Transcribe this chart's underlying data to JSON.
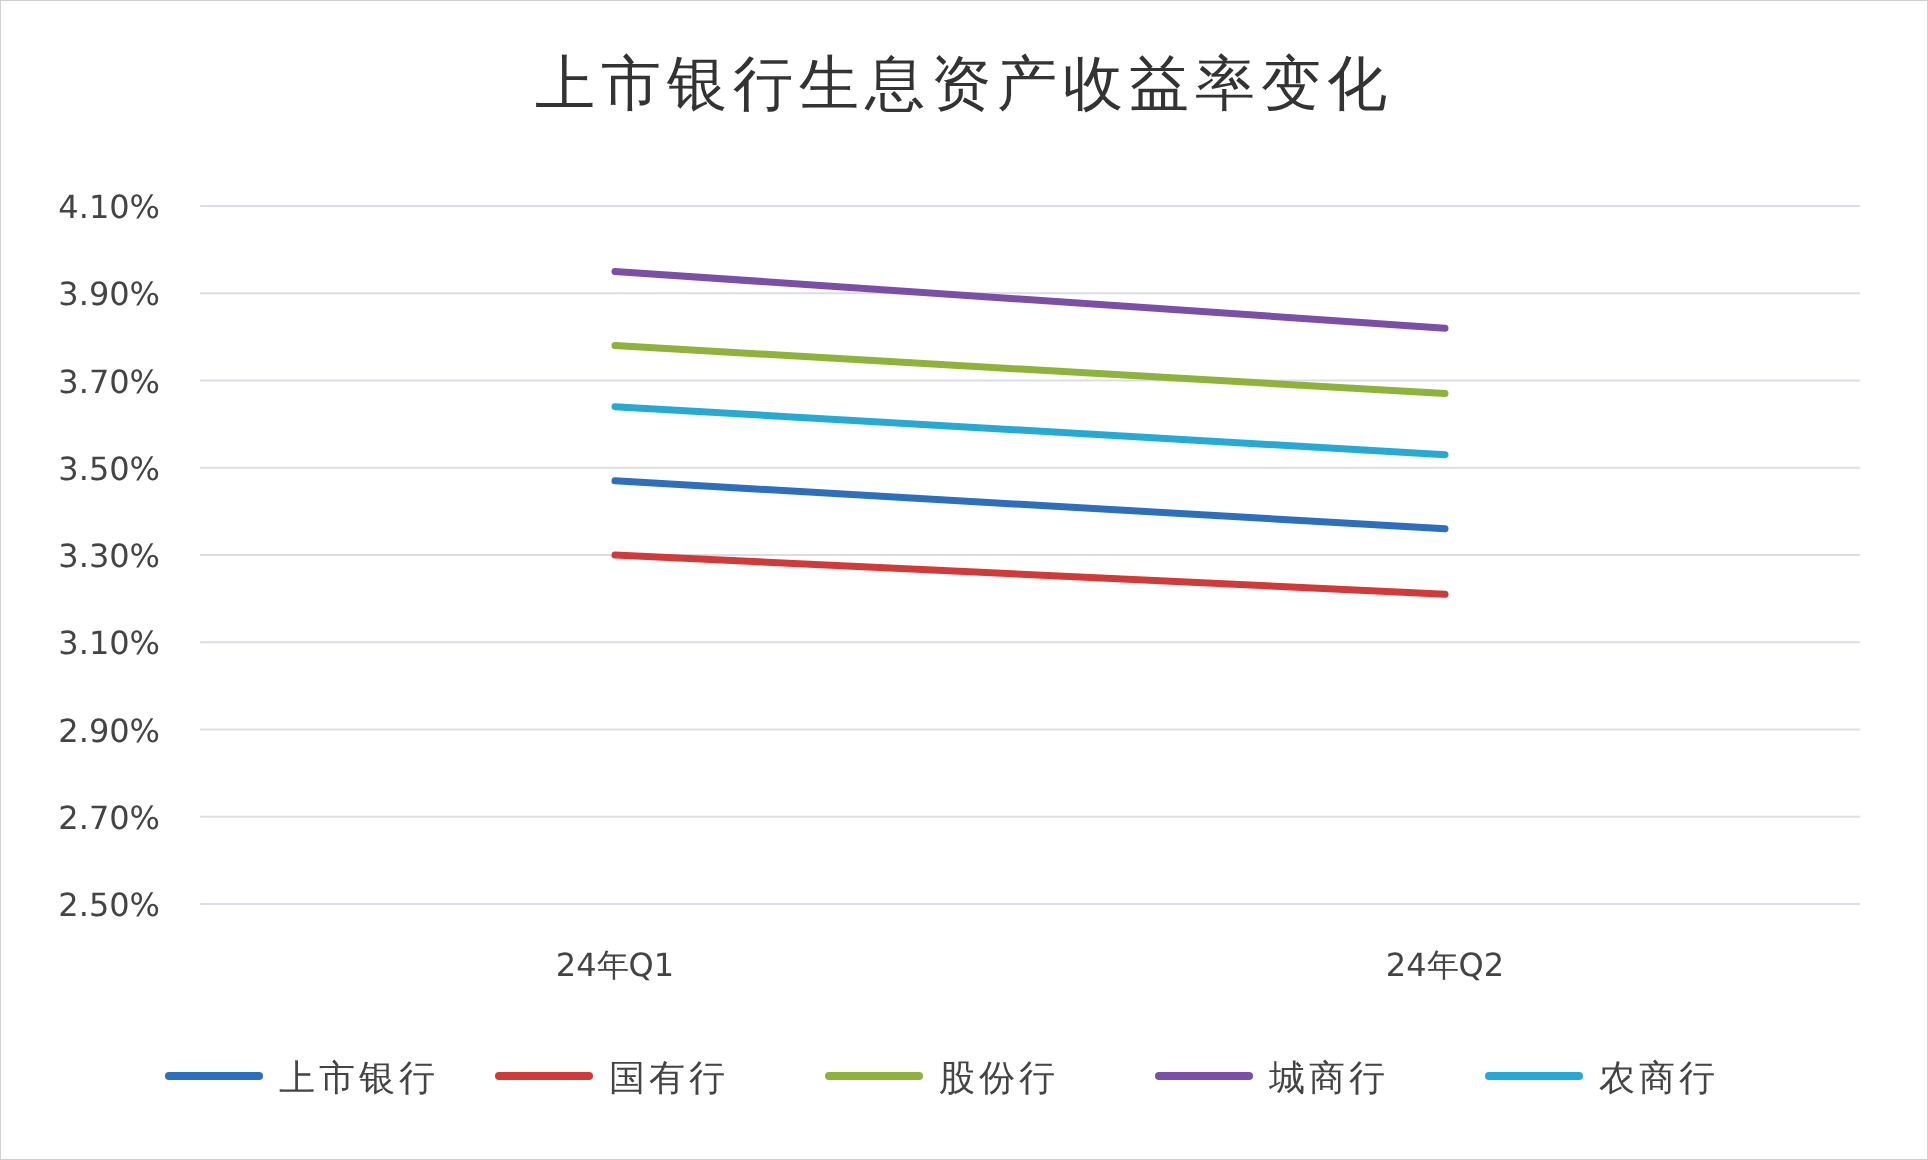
{
  "chart_data": {
    "type": "line",
    "title": "上市银行生息资产收益率变化",
    "categories": [
      "24年Q1",
      "24年Q2"
    ],
    "series": [
      {
        "name": "上市银行",
        "color": "#2e6fbd",
        "values": [
          3.47,
          3.36
        ]
      },
      {
        "name": "国有行",
        "color": "#d23a3a",
        "values": [
          3.3,
          3.21
        ]
      },
      {
        "name": "股份行",
        "color": "#8db33a",
        "values": [
          3.78,
          3.67
        ]
      },
      {
        "name": "城商行",
        "color": "#7b4fa8",
        "values": [
          3.95,
          3.82
        ]
      },
      {
        "name": "农商行",
        "color": "#27a9d6",
        "values": [
          3.64,
          3.53
        ]
      }
    ],
    "ylim": [
      2.5,
      4.1
    ],
    "yticks": [
      {
        "value": 2.5,
        "label": "2.50%"
      },
      {
        "value": 2.7,
        "label": "2.70%"
      },
      {
        "value": 2.9,
        "label": "2.90%"
      },
      {
        "value": 3.1,
        "label": "3.10%"
      },
      {
        "value": 3.3,
        "label": "3.30%"
      },
      {
        "value": 3.5,
        "label": "3.50%"
      },
      {
        "value": 3.7,
        "label": "3.70%"
      },
      {
        "value": 3.9,
        "label": "3.90%"
      },
      {
        "value": 4.1,
        "label": "4.10%"
      }
    ],
    "grid": "y",
    "legend": "bottom"
  }
}
